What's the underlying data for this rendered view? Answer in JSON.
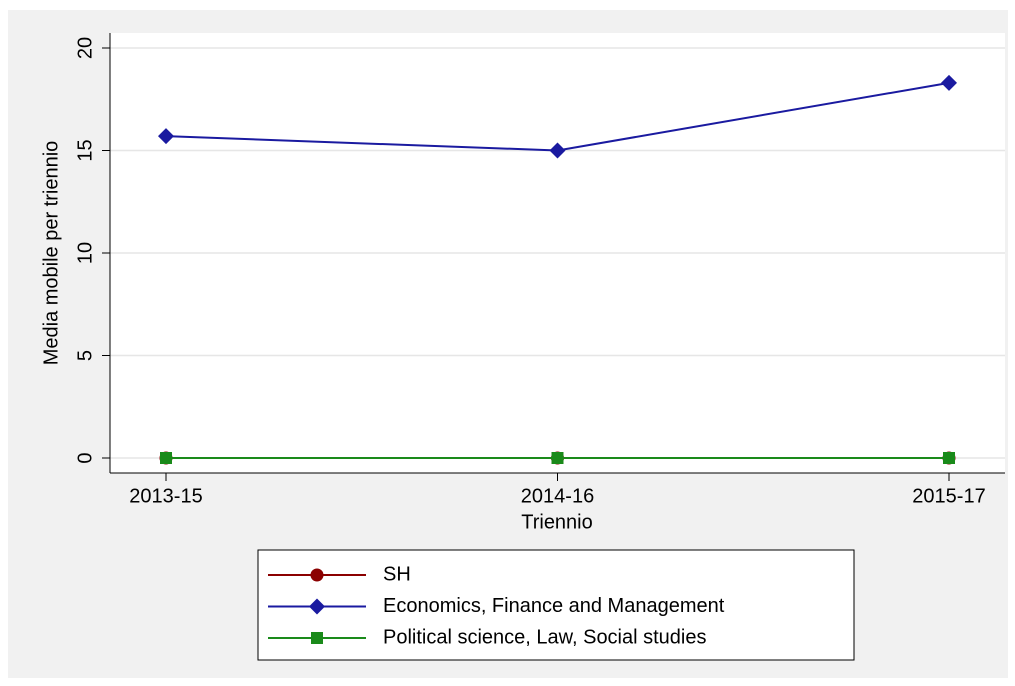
{
  "chart_data": {
    "type": "line",
    "categories": [
      "2013-15",
      "2014-16",
      "2015-17"
    ],
    "series": [
      {
        "name": "SH",
        "color": "#8b0000",
        "marker": "circle",
        "values": [
          0,
          0,
          0
        ]
      },
      {
        "name": "Economics, Finance and Management",
        "color": "#1a1aa0",
        "marker": "diamond",
        "values": [
          15.7,
          15.0,
          18.3
        ]
      },
      {
        "name": "Political science, Law, Social studies",
        "color": "#1a8a1a",
        "marker": "square",
        "values": [
          0,
          0,
          0
        ]
      }
    ],
    "xlabel": "Triennio",
    "ylabel": "Media mobile per triennio",
    "ylim": [
      0,
      20
    ],
    "yticks": [
      0,
      5,
      10,
      15,
      20
    ],
    "grid": true,
    "legend": "bottom"
  }
}
